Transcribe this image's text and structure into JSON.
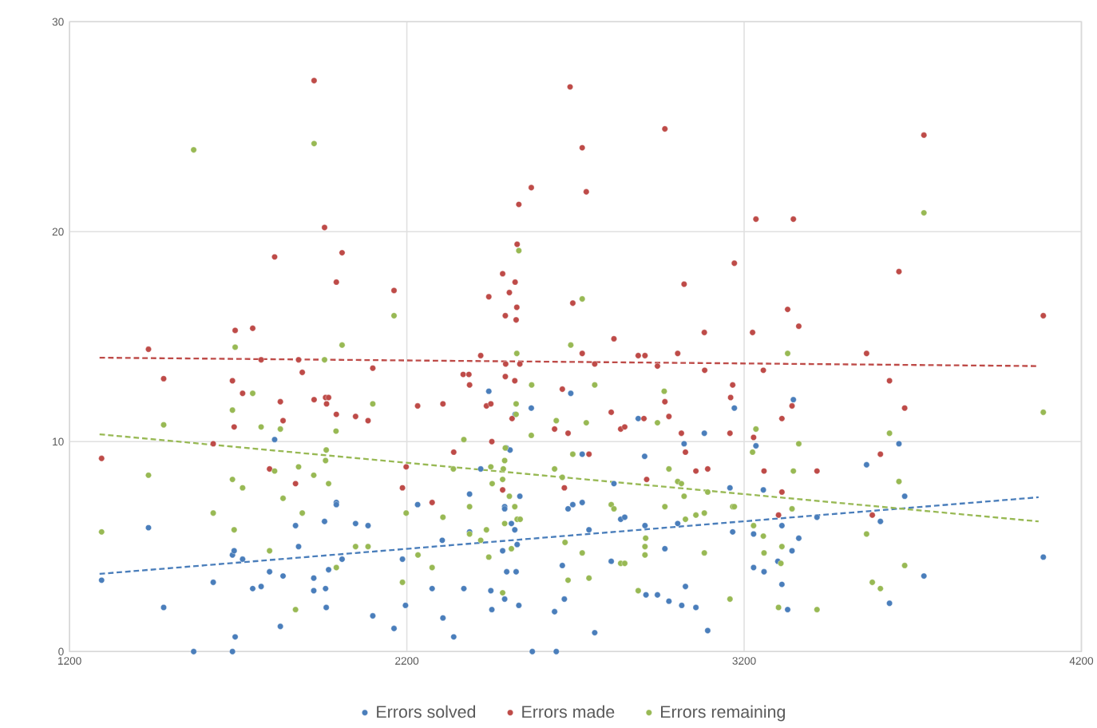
{
  "chart_data": {
    "type": "scatter",
    "grid": true,
    "legend": "bottom",
    "xlim": [
      1200,
      4200
    ],
    "xticks": [
      1200,
      2200,
      3200,
      4200
    ],
    "ylim": [
      0,
      30
    ],
    "yticks": [
      0,
      10,
      20,
      30
    ],
    "series": [
      {
        "name": "Errors solved",
        "marker": "circle",
        "color": "#4a7ebb",
        "x": [
          1295,
          1434,
          1479,
          1568,
          1626,
          1683,
          1683,
          1688,
          1691,
          1713,
          1743,
          1768,
          1793,
          1808,
          1825,
          1833,
          1870,
          1879,
          1924,
          1924,
          1956,
          1959,
          1961,
          1968,
          1991,
          1991,
          2008,
          2048,
          2085,
          2099,
          2162,
          2187,
          2196,
          2232,
          2275,
          2305,
          2307,
          2339,
          2369,
          2386,
          2386,
          2419,
          2443,
          2449,
          2452,
          2484,
          2490,
          2490,
          2490,
          2495,
          2496,
          2506,
          2510,
          2520,
          2521,
          2524,
          2527,
          2532,
          2535,
          2569,
          2572,
          2638,
          2643,
          2661,
          2667,
          2678,
          2686,
          2692,
          2720,
          2720,
          2740,
          2757,
          2806,
          2814,
          2834,
          2846,
          2886,
          2905,
          2906,
          2909,
          2943,
          2965,
          2977,
          3003,
          3015,
          3022,
          3026,
          3057,
          3082,
          3092,
          3158,
          3166,
          3171,
          3228,
          3228,
          3235,
          3257,
          3259,
          3300,
          3312,
          3312,
          3329,
          3342,
          3346,
          3362,
          3416,
          3563,
          3604,
          3631,
          3659,
          3676,
          3733,
          4087
        ],
        "values": [
          3.4,
          5.9,
          2.1,
          0,
          3.3,
          4.6,
          0,
          4.8,
          0.7,
          4.4,
          3.0,
          3.1,
          3.8,
          10.1,
          1.2,
          3.6,
          6.0,
          5.0,
          3.5,
          2.9,
          6.2,
          3.0,
          2.1,
          3.9,
          7.1,
          7.0,
          4.4,
          6.1,
          6.0,
          1.7,
          1.1,
          4.4,
          2.2,
          7.0,
          3.0,
          5.3,
          1.6,
          0.7,
          3.0,
          7.5,
          5.7,
          8.7,
          12.4,
          2.9,
          2.0,
          4.8,
          6.9,
          6.8,
          2.5,
          9.7,
          3.8,
          9.6,
          6.1,
          5.8,
          11.3,
          3.8,
          5.1,
          2.2,
          7.4,
          11.6,
          0,
          1.9,
          0,
          4.1,
          2.5,
          6.8,
          12.3,
          7.0,
          9.4,
          7.1,
          5.8,
          0.9,
          4.3,
          8.0,
          6.3,
          6.4,
          11.1,
          9.3,
          6.0,
          2.7,
          2.7,
          4.9,
          2.4,
          6.1,
          2.2,
          9.9,
          3.1,
          2.1,
          10.4,
          1.0,
          7.8,
          5.7,
          11.6,
          5.6,
          4.0,
          9.8,
          7.7,
          3.8,
          4.3,
          6.0,
          3.2,
          2.0,
          4.8,
          12.0,
          5.4,
          6.4,
          8.9,
          6.2,
          2.3,
          9.9,
          7.4,
          3.6,
          4.5
        ]
      },
      {
        "name": "Errors made",
        "marker": "circle",
        "color": "#be4b48",
        "x": [
          1295,
          1434,
          1479,
          1626,
          1683,
          1688,
          1691,
          1713,
          1743,
          1768,
          1793,
          1808,
          1825,
          1833,
          1870,
          1879,
          1890,
          1925,
          1925,
          1956,
          1959,
          1962,
          1968,
          1991,
          1991,
          2008,
          2048,
          2085,
          2099,
          2162,
          2187,
          2198,
          2232,
          2275,
          2307,
          2339,
          2367,
          2384,
          2386,
          2419,
          2436,
          2443,
          2449,
          2452,
          2484,
          2484,
          2492,
          2492,
          2493,
          2504,
          2512,
          2520,
          2521,
          2524,
          2526,
          2527,
          2532,
          2535,
          2569,
          2638,
          2661,
          2667,
          2678,
          2684,
          2692,
          2720,
          2720,
          2732,
          2740,
          2757,
          2806,
          2814,
          2834,
          2846,
          2886,
          2903,
          2906,
          2911,
          2943,
          2965,
          2965,
          2977,
          3003,
          3014,
          3022,
          3026,
          3057,
          3082,
          3083,
          3092,
          3158,
          3160,
          3166,
          3171,
          3225,
          3228,
          3235,
          3257,
          3259,
          3302,
          3312,
          3312,
          3329,
          3342,
          3346,
          3362,
          3416,
          3563,
          3580,
          3604,
          3631,
          3659,
          3676,
          3733,
          4087
        ],
        "values": [
          9.2,
          14.4,
          13.0,
          9.9,
          12.9,
          10.7,
          15.3,
          12.3,
          15.4,
          13.9,
          8.7,
          18.8,
          11.9,
          11.0,
          8.0,
          13.9,
          13.3,
          27.2,
          12.0,
          20.2,
          12.1,
          11.8,
          12.1,
          17.6,
          11.3,
          19.0,
          11.2,
          11.0,
          13.5,
          17.2,
          7.8,
          8.8,
          11.7,
          7.1,
          11.8,
          9.5,
          13.2,
          13.2,
          12.7,
          14.1,
          11.7,
          16.9,
          11.8,
          10.0,
          18.0,
          7.7,
          16.0,
          13.1,
          13.7,
          17.1,
          11.1,
          12.9,
          17.6,
          15.8,
          16.4,
          19.4,
          21.3,
          13.7,
          22.1,
          10.6,
          12.5,
          7.8,
          10.4,
          26.9,
          16.6,
          24.0,
          14.2,
          21.9,
          9.4,
          13.7,
          11.4,
          14.9,
          10.6,
          10.7,
          14.1,
          11.1,
          14.1,
          8.2,
          13.6,
          24.9,
          11.9,
          11.2,
          14.2,
          10.4,
          17.5,
          9.5,
          8.6,
          15.2,
          13.4,
          8.7,
          10.4,
          12.1,
          12.7,
          18.5,
          15.2,
          10.2,
          20.6,
          13.4,
          8.6,
          6.5,
          11.1,
          7.6,
          16.3,
          11.7,
          20.6,
          15.5,
          8.6,
          14.2,
          6.5,
          9.4,
          12.9,
          18.1,
          11.6,
          24.6,
          16.0
        ]
      },
      {
        "name": "Errors remaining",
        "marker": "circle",
        "color": "#98b954",
        "x": [
          1295,
          1434,
          1479,
          1568,
          1626,
          1683,
          1683,
          1688,
          1691,
          1713,
          1743,
          1768,
          1793,
          1808,
          1825,
          1833,
          1870,
          1879,
          1890,
          1924,
          1925,
          1956,
          1959,
          1961,
          1968,
          1990,
          1991,
          2008,
          2048,
          2085,
          2099,
          2162,
          2187,
          2198,
          2233,
          2275,
          2307,
          2338,
          2369,
          2386,
          2386,
          2419,
          2436,
          2443,
          2449,
          2453,
          2484,
          2484,
          2486,
          2490,
          2490,
          2492,
          2504,
          2510,
          2520,
          2524,
          2524,
          2526,
          2527,
          2532,
          2536,
          2569,
          2570,
          2638,
          2643,
          2661,
          2669,
          2678,
          2686,
          2692,
          2720,
          2720,
          2732,
          2740,
          2757,
          2806,
          2814,
          2834,
          2846,
          2886,
          2906,
          2906,
          2908,
          2943,
          2963,
          2965,
          2977,
          3003,
          3014,
          3022,
          3026,
          3057,
          3082,
          3082,
          3092,
          3158,
          3166,
          3171,
          3225,
          3228,
          3235,
          3257,
          3259,
          3302,
          3309,
          3312,
          3329,
          3342,
          3346,
          3362,
          3416,
          3563,
          3580,
          3604,
          3631,
          3659,
          3676,
          3733,
          4087
        ],
        "values": [
          5.7,
          8.4,
          10.8,
          23.9,
          6.6,
          11.5,
          8.2,
          5.8,
          14.5,
          7.8,
          12.3,
          10.7,
          4.8,
          8.6,
          10.6,
          7.3,
          2.0,
          8.8,
          6.6,
          8.4,
          24.2,
          13.9,
          9.1,
          9.6,
          8.0,
          10.5,
          4.0,
          14.6,
          5.0,
          5.0,
          11.8,
          16.0,
          3.3,
          6.6,
          4.6,
          4.0,
          6.4,
          8.7,
          10.1,
          6.9,
          5.6,
          5.3,
          5.8,
          4.5,
          8.8,
          8.0,
          8.2,
          2.8,
          8.7,
          9.1,
          6.1,
          9.7,
          7.4,
          4.9,
          6.9,
          11.8,
          11.3,
          14.2,
          6.3,
          19.1,
          6.3,
          10.3,
          12.7,
          8.7,
          11.0,
          8.3,
          5.2,
          3.4,
          14.6,
          9.4,
          16.8,
          4.7,
          10.9,
          3.5,
          12.7,
          7.0,
          6.8,
          4.2,
          4.2,
          2.9,
          5.0,
          4.6,
          5.4,
          10.9,
          12.4,
          6.9,
          8.7,
          8.1,
          8.0,
          7.4,
          6.3,
          6.5,
          6.6,
          4.7,
          7.6,
          2.5,
          6.9,
          6.9,
          9.5,
          6.0,
          10.6,
          5.5,
          4.7,
          2.1,
          4.2,
          5.0,
          14.2,
          6.8,
          8.6,
          9.9,
          2.0,
          5.6,
          3.3,
          3.0,
          10.4,
          8.1,
          4.1,
          20.9,
          11.4
        ]
      },
      {
        "type": "line",
        "marker": "none",
        "line_style": "dashed",
        "color": "#4a7ebb",
        "x": [
          1289,
          4073
        ],
        "values": [
          3.7,
          7.35
        ]
      },
      {
        "type": "line",
        "marker": "none",
        "line_style": "dashed",
        "color": "#be4b48",
        "x": [
          1289,
          4073
        ],
        "values": [
          14.0,
          13.6
        ]
      },
      {
        "type": "line",
        "marker": "none",
        "line_style": "dashed",
        "color": "#98b954",
        "x": [
          1289,
          4073
        ],
        "values": [
          10.35,
          6.2
        ]
      }
    ]
  }
}
